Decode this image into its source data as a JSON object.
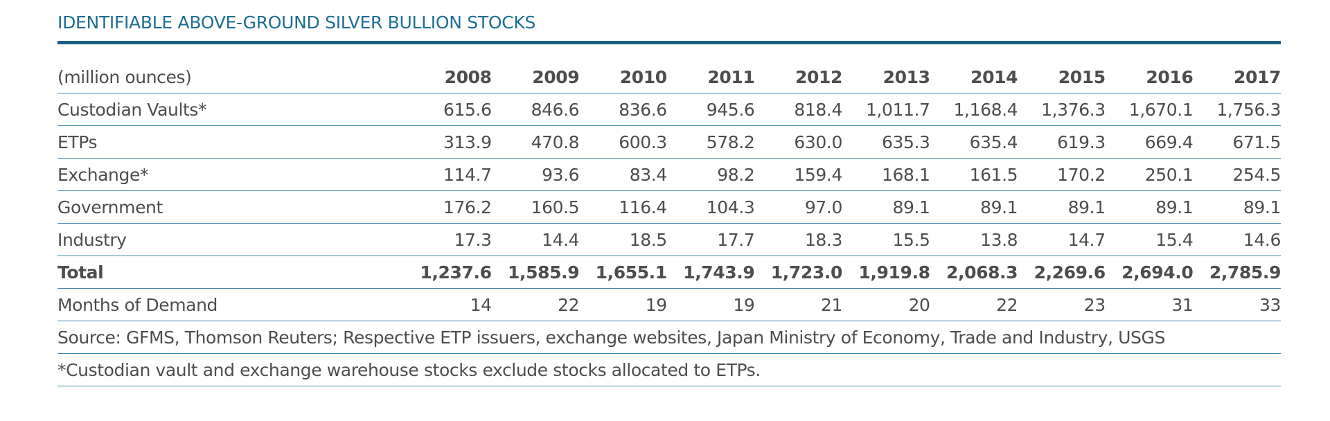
{
  "title": "IDENTIFIABLE ABOVE-GROUND SILVER BULLION STOCKS",
  "accent_color": "#1e6e94",
  "rule_color": "#1b5f82",
  "table": {
    "unit_label": "(million ounces)",
    "years": [
      "2008",
      "2009",
      "2010",
      "2011",
      "2012",
      "2013",
      "2014",
      "2015",
      "2016",
      "2017"
    ],
    "rows": [
      {
        "label": "Custodian Vaults*",
        "values": [
          "615.6",
          "846.6",
          "836.6",
          "945.6",
          "818.4",
          "1,011.7",
          "1,168.4",
          "1,376.3",
          "1,670.1",
          "1,756.3"
        ]
      },
      {
        "label": "ETPs",
        "values": [
          "313.9",
          "470.8",
          "600.3",
          "578.2",
          "630.0",
          "635.3",
          "635.4",
          "619.3",
          "669.4",
          "671.5"
        ]
      },
      {
        "label": "Exchange*",
        "values": [
          "114.7",
          "93.6",
          "83.4",
          "98.2",
          "159.4",
          "168.1",
          "161.5",
          "170.2",
          "250.1",
          "254.5"
        ]
      },
      {
        "label": "Government",
        "values": [
          "176.2",
          "160.5",
          "116.4",
          "104.3",
          "97.0",
          "89.1",
          "89.1",
          "89.1",
          "89.1",
          "89.1"
        ]
      },
      {
        "label": "Industry",
        "values": [
          "17.3",
          "14.4",
          "18.5",
          "17.7",
          "18.3",
          "15.5",
          "13.8",
          "14.7",
          "15.4",
          "14.6"
        ]
      },
      {
        "label": "Total",
        "values": [
          "1,237.6",
          "1,585.9",
          "1,655.1",
          "1,743.9",
          "1,723.0",
          "1,919.8",
          "2,068.3",
          "2,269.6",
          "2,694.0",
          "2,785.9"
        ]
      },
      {
        "label": "Months of Demand",
        "values": [
          "14",
          "22",
          "19",
          "19",
          "21",
          "20",
          "22",
          "23",
          "31",
          "33"
        ]
      }
    ],
    "source": "Source: GFMS, Thomson Reuters; Respective ETP issuers, exchange websites, Japan Ministry of Economy, Trade and Industry, USGS",
    "footnote": "*Custodian vault and exchange warehouse stocks exclude stocks allocated to ETPs."
  }
}
